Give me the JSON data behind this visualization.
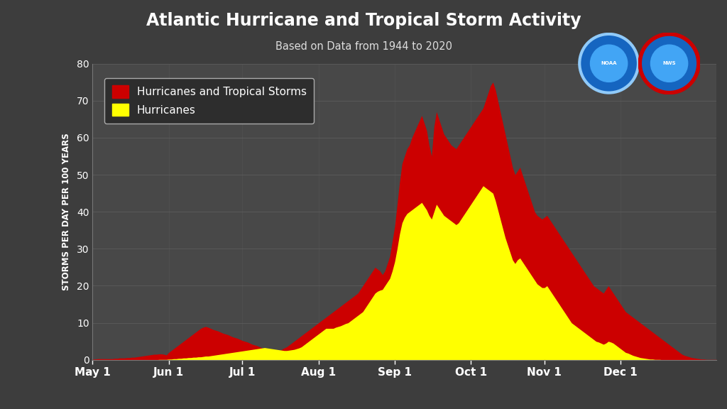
{
  "title": "Atlantic Hurricane and Tropical Storm Activity",
  "subtitle": "Based on Data from 1944 to 2020",
  "ylabel": "STORMS PER DAY PER 100 YEARS",
  "background_color": "#3d3d3d",
  "plot_bg_color": "#484848",
  "title_color": "#ffffff",
  "subtitle_color": "#dddddd",
  "label_color": "#ffffff",
  "tick_color": "#ffffff",
  "grid_color": "#606060",
  "ylim": [
    0,
    80
  ],
  "yticks": [
    0,
    10,
    20,
    30,
    40,
    50,
    60,
    70,
    80
  ],
  "red_color": "#cc0000",
  "yellow_color": "#ffff00",
  "legend_bg": "#2d2d2d",
  "xtick_labels": [
    "May 1",
    "Jun 1",
    "Jul 1",
    "Aug 1",
    "Sep 1",
    "Oct 1",
    "Nov 1",
    "Dec 1"
  ],
  "month_positions": [
    0,
    31,
    61,
    92,
    123,
    154,
    184,
    215
  ],
  "red_data": [
    0.2,
    0.2,
    0.3,
    0.3,
    0.3,
    0.3,
    0.3,
    0.3,
    0.3,
    0.4,
    0.4,
    0.5,
    0.5,
    0.5,
    0.6,
    0.6,
    0.7,
    0.7,
    0.8,
    0.9,
    1.0,
    1.1,
    1.2,
    1.3,
    1.4,
    1.5,
    1.5,
    1.6,
    1.6,
    1.5,
    1.3,
    2.0,
    2.5,
    3.0,
    3.5,
    4.0,
    4.5,
    5.0,
    5.5,
    6.0,
    6.5,
    7.0,
    7.5,
    8.0,
    8.5,
    8.8,
    9.0,
    8.8,
    8.5,
    8.2,
    8.0,
    7.8,
    7.5,
    7.2,
    7.0,
    6.8,
    6.5,
    6.2,
    6.0,
    5.8,
    5.5,
    5.2,
    5.0,
    4.8,
    4.5,
    4.2,
    4.0,
    3.8,
    3.5,
    3.2,
    3.0,
    2.8,
    2.5,
    2.3,
    2.0,
    2.2,
    2.5,
    2.8,
    3.2,
    3.5,
    4.0,
    4.5,
    5.0,
    5.5,
    6.0,
    6.5,
    7.0,
    7.5,
    8.0,
    8.5,
    9.0,
    9.5,
    10.0,
    10.5,
    11.0,
    11.5,
    12.0,
    12.5,
    13.0,
    13.5,
    14.0,
    14.5,
    15.0,
    15.5,
    16.0,
    16.5,
    17.0,
    17.5,
    18.0,
    19.0,
    20.0,
    21.0,
    22.0,
    23.0,
    24.0,
    25.0,
    24.5,
    24.0,
    23.0,
    24.0,
    26.0,
    28.0,
    32.0,
    36.0,
    42.0,
    48.0,
    53.0,
    55.0,
    57.0,
    58.0,
    60.0,
    61.5,
    63.0,
    64.5,
    66.0,
    64.0,
    62.0,
    58.0,
    55.0,
    63.0,
    67.0,
    65.0,
    63.0,
    61.0,
    60.0,
    59.0,
    58.0,
    57.5,
    57.0,
    58.0,
    59.0,
    60.0,
    61.0,
    62.0,
    63.0,
    64.0,
    65.0,
    66.0,
    67.0,
    68.0,
    70.0,
    72.0,
    74.0,
    75.0,
    73.0,
    70.0,
    67.0,
    64.0,
    61.0,
    58.0,
    55.0,
    52.0,
    50.0,
    51.0,
    52.0,
    50.0,
    48.0,
    46.0,
    44.0,
    42.0,
    40.0,
    39.0,
    38.5,
    38.0,
    38.5,
    39.0,
    38.0,
    37.0,
    36.0,
    35.0,
    34.0,
    33.0,
    32.0,
    31.0,
    30.0,
    29.0,
    28.0,
    27.0,
    26.0,
    25.0,
    24.0,
    23.0,
    22.0,
    21.0,
    20.0,
    19.5,
    19.0,
    18.5,
    18.0,
    19.0,
    20.0,
    19.0,
    18.0,
    17.0,
    16.0,
    15.0,
    14.0,
    13.0,
    12.5,
    12.0,
    11.5,
    11.0,
    10.5,
    10.0,
    9.5,
    9.0,
    8.5,
    8.0,
    7.5,
    7.0,
    6.5,
    6.0,
    5.5,
    5.0,
    4.5,
    4.0,
    3.5,
    3.0,
    2.5,
    2.0,
    1.5,
    1.2,
    1.0,
    0.8,
    0.6,
    0.5,
    0.4,
    0.3,
    0.2,
    0.2,
    0.1,
    0.1,
    0.1,
    0.1,
    0.1
  ],
  "yellow_data": [
    0.0,
    0.0,
    0.0,
    0.0,
    0.0,
    0.0,
    0.0,
    0.0,
    0.0,
    0.0,
    0.0,
    0.0,
    0.0,
    0.0,
    0.0,
    0.0,
    0.0,
    0.0,
    0.0,
    0.0,
    0.0,
    0.0,
    0.0,
    0.0,
    0.0,
    0.0,
    0.0,
    0.1,
    0.1,
    0.1,
    0.1,
    0.2,
    0.2,
    0.3,
    0.3,
    0.4,
    0.4,
    0.5,
    0.5,
    0.6,
    0.6,
    0.7,
    0.7,
    0.8,
    0.8,
    0.9,
    1.0,
    1.0,
    1.1,
    1.2,
    1.3,
    1.4,
    1.5,
    1.6,
    1.7,
    1.8,
    1.9,
    2.0,
    2.1,
    2.2,
    2.3,
    2.4,
    2.5,
    2.6,
    2.7,
    2.8,
    2.9,
    3.0,
    3.1,
    3.2,
    3.3,
    3.2,
    3.1,
    3.0,
    2.9,
    2.8,
    2.7,
    2.6,
    2.5,
    2.5,
    2.6,
    2.7,
    2.8,
    3.0,
    3.2,
    3.5,
    4.0,
    4.5,
    5.0,
    5.5,
    6.0,
    6.5,
    7.0,
    7.5,
    8.0,
    8.5,
    8.5,
    8.5,
    8.5,
    8.8,
    9.0,
    9.2,
    9.5,
    9.8,
    10.0,
    10.5,
    11.0,
    11.5,
    12.0,
    12.5,
    13.0,
    14.0,
    15.0,
    16.0,
    17.0,
    18.0,
    18.5,
    18.8,
    19.0,
    20.0,
    21.0,
    22.0,
    24.0,
    26.5,
    30.0,
    34.0,
    37.0,
    38.5,
    39.5,
    40.0,
    40.5,
    41.0,
    41.5,
    42.0,
    42.5,
    41.5,
    40.5,
    39.0,
    38.0,
    40.0,
    42.0,
    41.0,
    40.0,
    39.0,
    38.5,
    38.0,
    37.5,
    37.0,
    36.5,
    37.0,
    38.0,
    39.0,
    40.0,
    41.0,
    42.0,
    43.0,
    44.0,
    45.0,
    46.0,
    47.0,
    46.5,
    46.0,
    45.5,
    45.0,
    43.0,
    40.5,
    38.0,
    35.5,
    33.0,
    31.0,
    29.0,
    27.0,
    26.0,
    27.0,
    27.5,
    26.5,
    25.5,
    24.5,
    23.5,
    22.5,
    21.5,
    20.5,
    20.0,
    19.5,
    19.5,
    20.0,
    19.0,
    18.0,
    17.0,
    16.0,
    15.0,
    14.0,
    13.0,
    12.0,
    11.0,
    10.0,
    9.5,
    9.0,
    8.5,
    8.0,
    7.5,
    7.0,
    6.5,
    6.0,
    5.5,
    5.0,
    4.8,
    4.5,
    4.2,
    4.5,
    5.0,
    4.8,
    4.5,
    4.0,
    3.5,
    3.0,
    2.5,
    2.0,
    1.8,
    1.5,
    1.2,
    1.0,
    0.8,
    0.6,
    0.5,
    0.4,
    0.3,
    0.2,
    0.2,
    0.1,
    0.1,
    0.1,
    0.0,
    0.0,
    0.0,
    0.0,
    0.0,
    0.0,
    0.0,
    0.0,
    0.0,
    0.0,
    0.0,
    0.0,
    0.0,
    0.0,
    0.0,
    0.0,
    0.0,
    0.0,
    0.0,
    0.0,
    0.0,
    0.0,
    0.0
  ]
}
